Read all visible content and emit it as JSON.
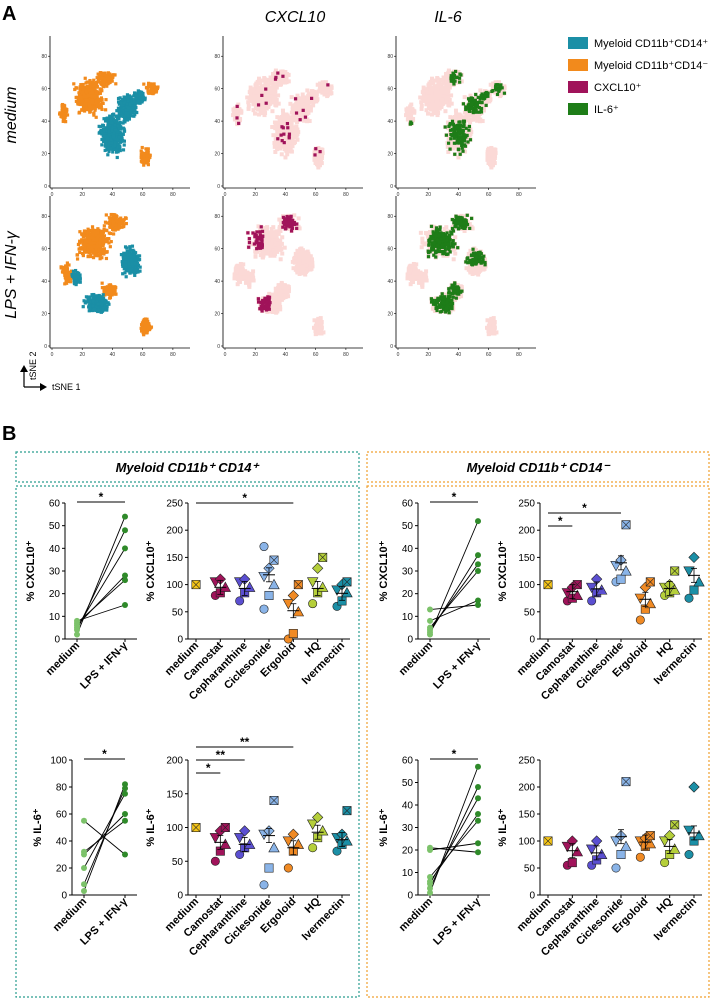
{
  "panel_labels": {
    "a": "A",
    "b": "B"
  },
  "panel_a": {
    "col_headers": [
      "CXCL10",
      "IL-6"
    ],
    "row_labels": [
      "medium",
      "LPS + IFN-γ"
    ],
    "tsne_axis": {
      "y": "tSNE 2",
      "x": "tSNE 1"
    },
    "legend": [
      {
        "label": "Myeloid CD11b⁺CD14⁺",
        "color": "#1b8fa6"
      },
      {
        "label": "Myeloid CD11b⁺CD14⁻",
        "color": "#f28a1c"
      },
      {
        "label": "CXCL10⁺",
        "color": "#a0135a"
      },
      {
        "label": "IL-6⁺",
        "color": "#1e7d18"
      }
    ],
    "background_color": "#fbd9d6",
    "x_ticks": [
      "0",
      "20",
      "40",
      "60",
      "80"
    ],
    "y_ticks": [
      "0",
      "20",
      "40",
      "60",
      "80"
    ]
  },
  "panel_b": {
    "groups": [
      {
        "title": "Myeloid CD11b⁺ CD14⁺",
        "color": "#2a9d8f"
      },
      {
        "title": "Myeloid CD11b⁺ CD14⁻",
        "color": "#f0a030"
      }
    ]
  },
  "chart_data": [
    {
      "type": "scatter",
      "id": "cd14p_cxcl10_paired",
      "ylabel": "% CXCL10⁺",
      "ylim": [
        0,
        60
      ],
      "yticks": [
        0,
        10,
        20,
        30,
        40,
        50,
        60
      ],
      "categories": [
        "medium",
        "LPS + IFN-γ"
      ],
      "pairs": [
        [
          2,
          54
        ],
        [
          4,
          48
        ],
        [
          5,
          40
        ],
        [
          6,
          28
        ],
        [
          7,
          26
        ],
        [
          8,
          15
        ]
      ],
      "significance": [
        {
          "from": 0,
          "to": 1,
          "label": "*"
        }
      ]
    },
    {
      "type": "scatter",
      "id": "cd14p_cxcl10_drugs",
      "ylabel": "% CXCL10⁺",
      "ylim": [
        0,
        250
      ],
      "yticks": [
        0,
        50,
        100,
        150,
        200,
        250
      ],
      "categories": [
        "medium",
        "Camostat",
        "Cepharanthine",
        "Ciclesonide",
        "Ergoloid",
        "HQ",
        "Ivermectin"
      ],
      "points": [
        [
          100
        ],
        [
          80,
          85,
          95,
          105,
          110
        ],
        [
          70,
          85,
          95,
          105,
          110
        ],
        [
          55,
          80,
          100,
          115,
          130,
          145,
          170
        ],
        [
          0,
          10,
          50,
          65,
          80,
          100
        ],
        [
          65,
          85,
          95,
          105,
          130,
          150
        ],
        [
          60,
          70,
          85,
          90,
          100,
          105
        ]
      ],
      "means": [
        100,
        95,
        93,
        118,
        52,
        93,
        84
      ],
      "significance": [
        {
          "from": 0,
          "to": 4,
          "label": "*"
        }
      ]
    },
    {
      "type": "scatter",
      "id": "cd14n_cxcl10_paired",
      "ylabel": "% CXCL10⁺",
      "ylim": [
        0,
        60
      ],
      "yticks": [
        0,
        10,
        20,
        30,
        40,
        50,
        60
      ],
      "categories": [
        "medium",
        "LPS + IFN-γ"
      ],
      "pairs": [
        [
          2,
          52
        ],
        [
          3,
          37
        ],
        [
          4,
          33
        ],
        [
          5,
          30
        ],
        [
          8,
          17
        ],
        [
          13,
          15
        ]
      ],
      "significance": [
        {
          "from": 0,
          "to": 1,
          "label": "*"
        }
      ]
    },
    {
      "type": "scatter",
      "id": "cd14n_cxcl10_drugs",
      "ylabel": "% CXCL10⁺",
      "ylim": [
        0,
        250
      ],
      "yticks": [
        0,
        50,
        100,
        150,
        200,
        250
      ],
      "categories": [
        "medium",
        "Camostat",
        "Cepharanthine",
        "Ciclesonide",
        "Ergoloid",
        "HQ",
        "Ivermectin"
      ],
      "points": [
        [
          100
        ],
        [
          70,
          75,
          80,
          85,
          95,
          100
        ],
        [
          70,
          85,
          90,
          95,
          110
        ],
        [
          105,
          110,
          125,
          135,
          145,
          210
        ],
        [
          35,
          55,
          65,
          75,
          95,
          105
        ],
        [
          80,
          85,
          90,
          95,
          100,
          125
        ],
        [
          75,
          90,
          105,
          125,
          150
        ]
      ],
      "means": [
        100,
        87,
        92,
        140,
        73,
        93,
        117
      ],
      "significance": [
        {
          "from": 0,
          "to": 1,
          "label": "*"
        },
        {
          "from": 0,
          "to": 3,
          "label": "*"
        }
      ]
    },
    {
      "type": "scatter",
      "id": "cd14p_il6_paired",
      "ylabel": "% IL-6⁺",
      "ylim": [
        0,
        100
      ],
      "yticks": [
        0,
        20,
        40,
        60,
        80,
        100
      ],
      "categories": [
        "medium",
        "LPS + IFN-γ"
      ],
      "pairs": [
        [
          3,
          82
        ],
        [
          8,
          79
        ],
        [
          20,
          75
        ],
        [
          30,
          60
        ],
        [
          32,
          55
        ],
        [
          55,
          30
        ]
      ],
      "significance": [
        {
          "from": 0,
          "to": 1,
          "label": "*"
        }
      ]
    },
    {
      "type": "scatter",
      "id": "cd14p_il6_drugs",
      "ylabel": "% IL-6⁺",
      "ylim": [
        0,
        200
      ],
      "yticks": [
        0,
        50,
        100,
        150,
        200
      ],
      "categories": [
        "medium",
        "Camostat",
        "Cepharanthine",
        "Ciclesonide",
        "Ergoloid",
        "HQ",
        "Ivermectin"
      ],
      "points": [
        [
          100
        ],
        [
          50,
          65,
          75,
          85,
          95,
          100
        ],
        [
          60,
          70,
          75,
          85,
          95
        ],
        [
          15,
          40,
          70,
          90,
          95,
          140
        ],
        [
          40,
          65,
          75,
          80,
          90
        ],
        [
          70,
          85,
          95,
          105,
          115
        ],
        [
          65,
          75,
          80,
          85,
          90,
          125
        ]
      ],
      "means": [
        100,
        78,
        75,
        88,
        70,
        93,
        82
      ],
      "significance": [
        {
          "from": 0,
          "to": 1,
          "label": "*"
        },
        {
          "from": 0,
          "to": 2,
          "label": "**"
        },
        {
          "from": 0,
          "to": 4,
          "label": "**"
        }
      ]
    },
    {
      "type": "scatter",
      "id": "cd14n_il6_paired",
      "ylabel": "% IL-6⁺",
      "ylim": [
        0,
        60
      ],
      "yticks": [
        0,
        10,
        20,
        30,
        40,
        50,
        60
      ],
      "categories": [
        "medium",
        "LPS + IFN-γ"
      ],
      "pairs": [
        [
          1,
          57
        ],
        [
          3,
          48
        ],
        [
          5,
          43
        ],
        [
          6,
          36
        ],
        [
          8,
          33
        ],
        [
          20,
          23
        ],
        [
          21,
          19
        ]
      ],
      "significance": [
        {
          "from": 0,
          "to": 1,
          "label": "*"
        }
      ]
    },
    {
      "type": "scatter",
      "id": "cd14n_il6_drugs",
      "ylabel": "% IL-6⁺",
      "ylim": [
        0,
        250
      ],
      "yticks": [
        0,
        50,
        100,
        150,
        200,
        250
      ],
      "categories": [
        "medium",
        "Camostat",
        "Cepharanthine",
        "Ciclesonide",
        "Ergoloid",
        "HQ",
        "Ivermectin"
      ],
      "points": [
        [
          100
        ],
        [
          55,
          60,
          80,
          90,
          100
        ],
        [
          55,
          65,
          75,
          85,
          100
        ],
        [
          50,
          75,
          90,
          100,
          110,
          210
        ],
        [
          70,
          90,
          95,
          100,
          105,
          110
        ],
        [
          60,
          75,
          85,
          100,
          110,
          130
        ],
        [
          75,
          100,
          110,
          120,
          200
        ]
      ],
      "means": [
        100,
        82,
        78,
        108,
        98,
        90,
        115
      ],
      "significance": []
    }
  ]
}
